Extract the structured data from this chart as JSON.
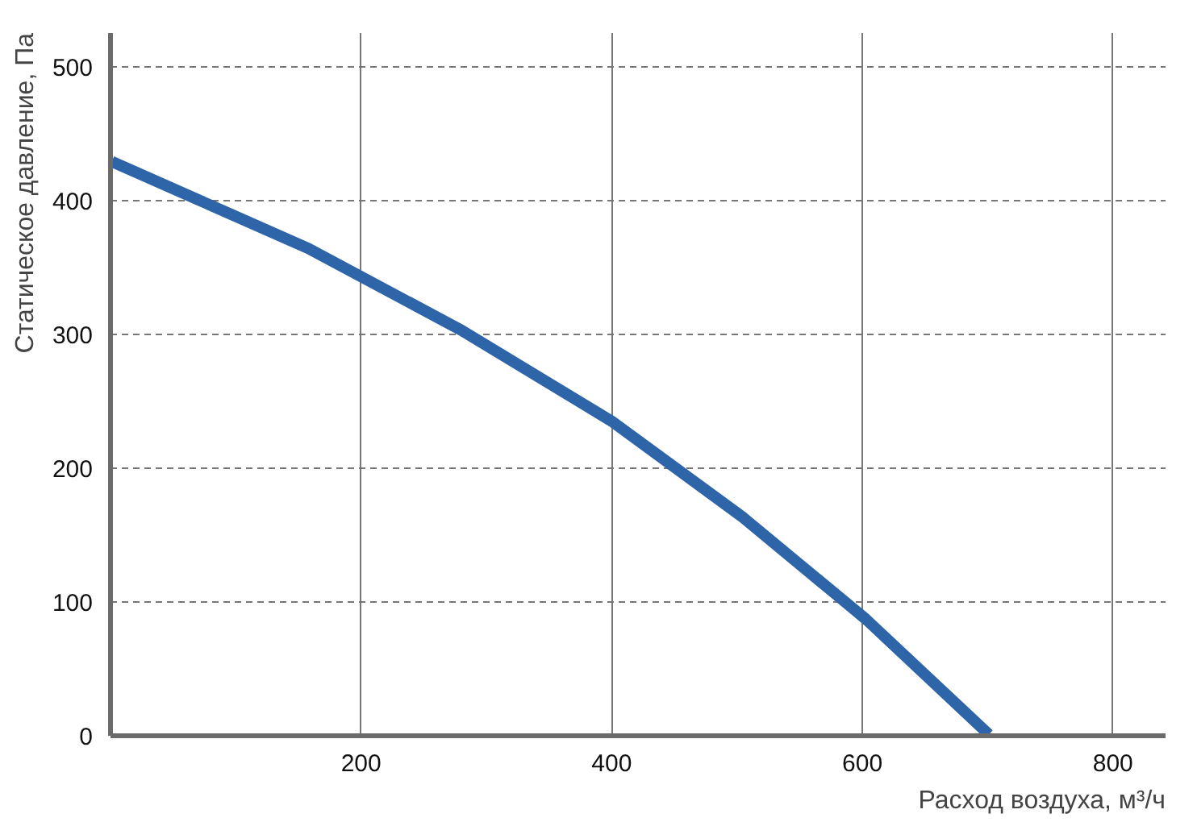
{
  "chart_data": {
    "type": "line",
    "xlabel": "Расход воздуха, м³/ч",
    "ylabel": "Статическое давление, Па",
    "x": [
      1,
      158,
      280,
      400,
      505,
      603,
      701
    ],
    "series": [
      {
        "color": "#2e64a8",
        "values": [
          429,
          364,
          303,
          235,
          163,
          87,
          1
        ]
      }
    ],
    "xlim": [
      0,
      842
    ],
    "ylim": [
      0,
      525
    ],
    "xticks": [
      200,
      400,
      600,
      800
    ],
    "yticks": [
      0,
      100,
      200,
      300,
      400,
      500
    ],
    "grid": true,
    "line_style": "solid",
    "marker": "none"
  }
}
